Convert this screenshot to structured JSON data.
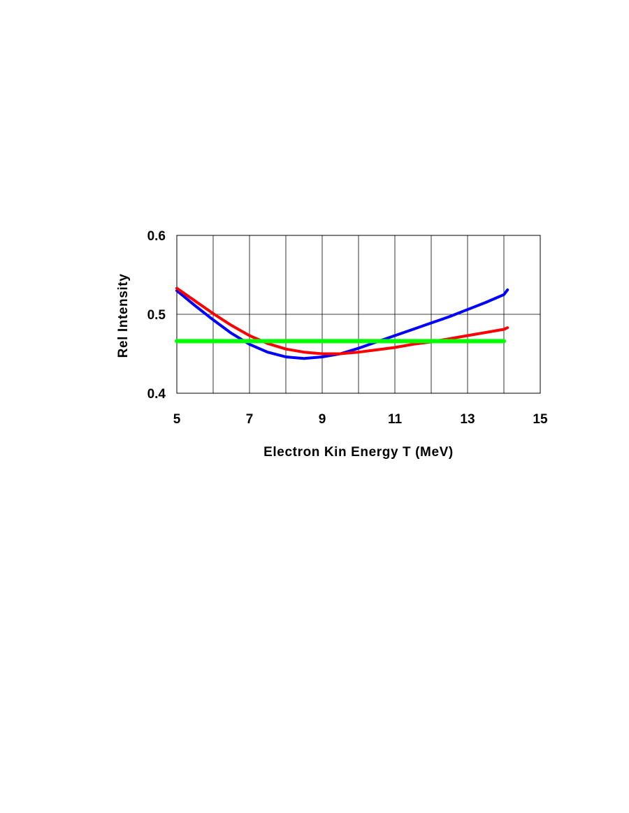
{
  "chart_data": {
    "type": "line",
    "title": "",
    "xlabel": "Electron Kin Energy T (MeV)",
    "ylabel": "Rel Intensity",
    "xlim": [
      5,
      15
    ],
    "ylim": [
      0.4,
      0.6
    ],
    "xticks": [
      5,
      7,
      9,
      11,
      13,
      15
    ],
    "xtick_labels": [
      "5",
      "7",
      "9",
      "11",
      "13",
      "15"
    ],
    "yticks": [
      0.4,
      0.5,
      0.6
    ],
    "ytick_labels": [
      "0.4",
      "0.5",
      "0.6"
    ],
    "grid": true,
    "legend": "none",
    "series": [
      {
        "color": "#0000ff",
        "x": [
          5.0,
          5.5,
          6.0,
          6.5,
          7.0,
          7.5,
          8.0,
          8.5,
          9.0,
          9.5,
          10.0,
          10.5,
          11.0,
          11.5,
          12.0,
          12.5,
          13.0,
          13.5,
          14.0,
          14.1
        ],
        "y": [
          0.53,
          0.511,
          0.493,
          0.476,
          0.462,
          0.452,
          0.446,
          0.444,
          0.446,
          0.45,
          0.457,
          0.465,
          0.473,
          0.481,
          0.489,
          0.497,
          0.506,
          0.515,
          0.525,
          0.531
        ]
      },
      {
        "color": "#ff0000",
        "x": [
          5.0,
          5.5,
          6.0,
          6.5,
          7.0,
          7.5,
          8.0,
          8.5,
          9.0,
          9.5,
          10.0,
          10.5,
          11.0,
          11.5,
          12.0,
          12.5,
          13.0,
          13.5,
          14.0,
          14.1
        ],
        "y": [
          0.533,
          0.517,
          0.501,
          0.486,
          0.473,
          0.463,
          0.456,
          0.452,
          0.45,
          0.45,
          0.452,
          0.455,
          0.458,
          0.462,
          0.465,
          0.469,
          0.473,
          0.477,
          0.481,
          0.483
        ]
      },
      {
        "color": "#00ff00",
        "x": [
          5.0,
          14.0
        ],
        "y": [
          0.466,
          0.466
        ]
      }
    ]
  }
}
